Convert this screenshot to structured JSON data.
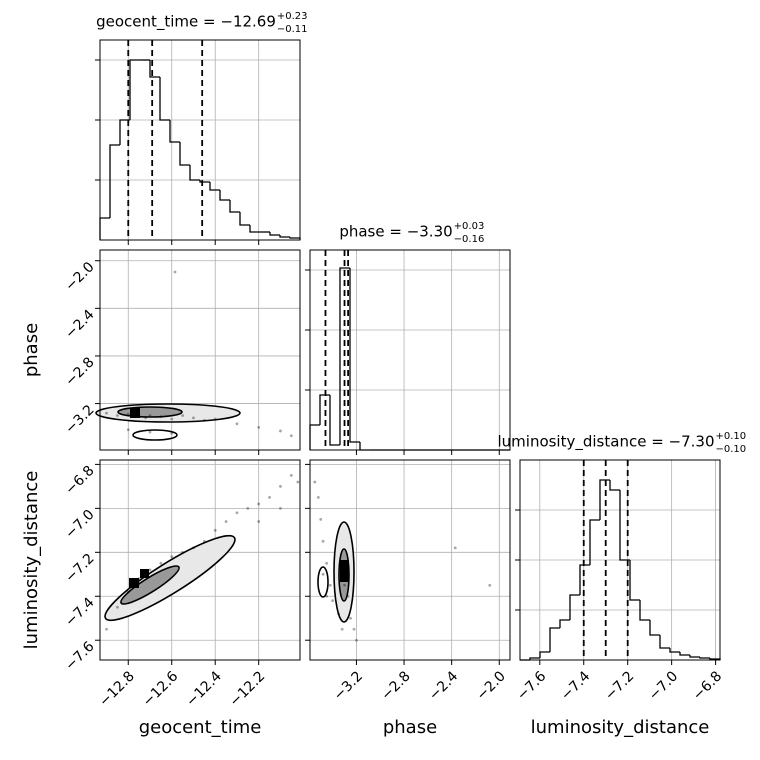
{
  "chart_data": [
    {
      "type": "histogram",
      "title": "geocent_time = −12.69",
      "title_upper": "+0.23",
      "title_lower": "−0.11",
      "bins": [
        -12.93,
        -12.884,
        -12.838,
        -12.792,
        -12.746,
        -12.7,
        -12.654,
        -12.608,
        -12.562,
        -12.516,
        -12.47,
        -12.424,
        -12.378,
        -12.332,
        -12.286,
        -12.24,
        -12.194,
        -12.148,
        -12.102,
        -12.056,
        -12.01
      ],
      "values": [
        22,
        95,
        120,
        180,
        180,
        163,
        120,
        98,
        75,
        60,
        58,
        50,
        40,
        28,
        15,
        8,
        8,
        5,
        3,
        2
      ],
      "quantiles": [
        -12.8,
        -12.69,
        -12.46
      ],
      "color": "#000000",
      "xlim": [
        -12.93,
        -12.01
      ],
      "ylim": [
        0,
        200
      ],
      "xticks": [
        -12.8,
        -12.6,
        -12.4,
        -12.2
      ],
      "yticks": [
        60,
        120,
        180
      ]
    },
    {
      "type": "histogram",
      "title": "phase = −3.30",
      "title_upper": "+0.03",
      "title_lower": "−0.16",
      "bins": [
        -3.59,
        -3.506,
        -3.422,
        -3.338,
        -3.254,
        -3.17,
        -3.086,
        -3.002,
        -2.918,
        -2.834,
        -2.75,
        -2.666,
        -2.582,
        -2.498,
        -2.414,
        -2.33,
        -2.246,
        -2.162,
        -2.078,
        -1.994,
        -1.91
      ],
      "values": [
        25,
        55,
        5,
        182,
        8,
        0,
        0,
        0,
        0,
        0,
        0,
        0,
        0,
        0,
        0,
        0,
        0,
        0,
        0,
        0
      ],
      "quantiles": [
        -3.46,
        -3.3,
        -3.27
      ],
      "color": "#000000",
      "xlim": [
        -3.59,
        -1.91
      ],
      "ylim": [
        0,
        200
      ],
      "xticks": [
        -3.2,
        -2.8,
        -2.4,
        -2.0
      ],
      "yticks": [
        60,
        120,
        180
      ]
    },
    {
      "type": "histogram",
      "title": "luminosity_distance = −7.30",
      "title_upper": "+0.10",
      "title_lower": "−0.10",
      "xlabel": "luminosity_distance",
      "bins": [
        -7.69,
        -7.6445,
        -7.599,
        -7.5535,
        -7.508,
        -7.4625,
        -7.417,
        -7.3715,
        -7.326,
        -7.2805,
        -7.235,
        -7.1895,
        -7.144,
        -7.0985,
        -7.053,
        -7.0075,
        -6.962,
        -6.9165,
        -6.871,
        -6.8255,
        -6.78
      ],
      "values": [
        0,
        2,
        8,
        32,
        40,
        65,
        95,
        140,
        180,
        170,
        100,
        60,
        40,
        25,
        12,
        8,
        5,
        3,
        2,
        1
      ],
      "quantiles": [
        -7.4,
        -7.3,
        -7.2
      ],
      "color": "#000000",
      "xlim": [
        -7.69,
        -6.78
      ],
      "ylim": [
        0,
        200
      ],
      "xticks": [
        {
          "value": -7.6,
          "label": "−7.6"
        },
        {
          "value": -7.4,
          "label": "−7.4"
        },
        {
          "value": -7.2,
          "label": "−7.2"
        },
        {
          "value": -7.0,
          "label": "−7.0"
        },
        {
          "value": -6.8,
          "label": "−6.8"
        }
      ],
      "yticks": [
        50,
        100,
        150
      ]
    },
    {
      "type": "scatter",
      "ylabel": "phase",
      "x": [
        -12.9,
        -12.85,
        -12.8,
        -12.78,
        -12.75,
        -12.72,
        -12.7,
        -12.65,
        -12.6,
        -12.55,
        -12.5,
        -12.45,
        -12.4,
        -12.3,
        -12.2,
        -12.1,
        -12.05,
        -12.8,
        -12.7,
        -12.6,
        -12.585
      ],
      "y": [
        -3.28,
        -3.3,
        -3.29,
        -3.31,
        -3.3,
        -3.32,
        -3.3,
        -3.31,
        -3.33,
        -3.3,
        -3.32,
        -3.34,
        -3.33,
        -3.37,
        -3.4,
        -3.43,
        -3.47,
        -3.42,
        -3.44,
        -3.45,
        -2.095
      ],
      "color": "#000000",
      "xlim": [
        -12.93,
        -12.01
      ],
      "ylim": [
        -3.59,
        -1.91
      ],
      "xticks": [
        -12.8,
        -12.6,
        -12.4,
        -12.2
      ],
      "yticks": [
        {
          "value": -3.2,
          "label": "−3.2"
        },
        {
          "value": -2.8,
          "label": "−2.8"
        },
        {
          "value": -2.4,
          "label": "−2.4"
        },
        {
          "value": -2.0,
          "label": "−2.0"
        }
      ]
    },
    {
      "type": "scatter",
      "xlabel": "geocent_time",
      "ylabel": "luminosity_distance",
      "x": [
        -12.9,
        -12.85,
        -12.8,
        -12.78,
        -12.75,
        -12.7,
        -12.65,
        -12.6,
        -12.55,
        -12.5,
        -12.45,
        -12.4,
        -12.35,
        -12.3,
        -12.25,
        -12.2,
        -12.15,
        -12.1,
        -12.05,
        -12.2,
        -12.1,
        -12.02
      ],
      "y": [
        -7.55,
        -7.45,
        -7.38,
        -7.35,
        -7.32,
        -7.28,
        -7.25,
        -7.22,
        -7.2,
        -7.18,
        -7.15,
        -7.1,
        -7.06,
        -7.02,
        -7.0,
        -6.98,
        -6.95,
        -6.9,
        -6.85,
        -7.06,
        -7.0,
        -6.88
      ],
      "color": "#000000",
      "xlim": [
        -12.93,
        -12.01
      ],
      "ylim": [
        -7.69,
        -6.78
      ],
      "xticks": [
        {
          "value": -12.8,
          "label": "−12.8"
        },
        {
          "value": -12.6,
          "label": "−12.6"
        },
        {
          "value": -12.4,
          "label": "−12.4"
        },
        {
          "value": -12.2,
          "label": "−12.2"
        }
      ],
      "yticks": [
        {
          "value": -7.6,
          "label": "−7.6"
        },
        {
          "value": -7.4,
          "label": "−7.4"
        },
        {
          "value": -7.2,
          "label": "−7.2"
        },
        {
          "value": -7.0,
          "label": "−7.0"
        },
        {
          "value": -6.8,
          "label": "−6.8"
        }
      ]
    },
    {
      "type": "scatter",
      "xlabel": "phase",
      "x": [
        -3.55,
        -3.52,
        -3.5,
        -3.48,
        -3.45,
        -3.42,
        -3.4,
        -3.35,
        -3.32,
        -3.3,
        -3.28,
        -3.3,
        -3.27,
        -3.25,
        -3.22,
        -3.2,
        -3.48,
        -3.45,
        -2.37,
        -2.08
      ],
      "y": [
        -6.88,
        -6.95,
        -7.05,
        -7.15,
        -7.25,
        -7.35,
        -7.42,
        -7.48,
        -7.55,
        -7.3,
        -7.25,
        -7.35,
        -7.4,
        -7.5,
        -7.55,
        -7.6,
        -7.3,
        -7.4,
        -7.18,
        -7.35
      ],
      "color": "#000000",
      "xlim": [
        -3.59,
        -1.91
      ],
      "ylim": [
        -7.69,
        -6.78
      ],
      "xticks": [
        {
          "value": -3.2,
          "label": "−3.2"
        },
        {
          "value": -2.8,
          "label": "−2.8"
        },
        {
          "value": -2.4,
          "label": "−2.4"
        },
        {
          "value": -2.0,
          "label": "−2.0"
        }
      ],
      "yticks": [
        -7.6,
        -7.4,
        -7.2,
        -7.0,
        -6.8
      ]
    }
  ]
}
